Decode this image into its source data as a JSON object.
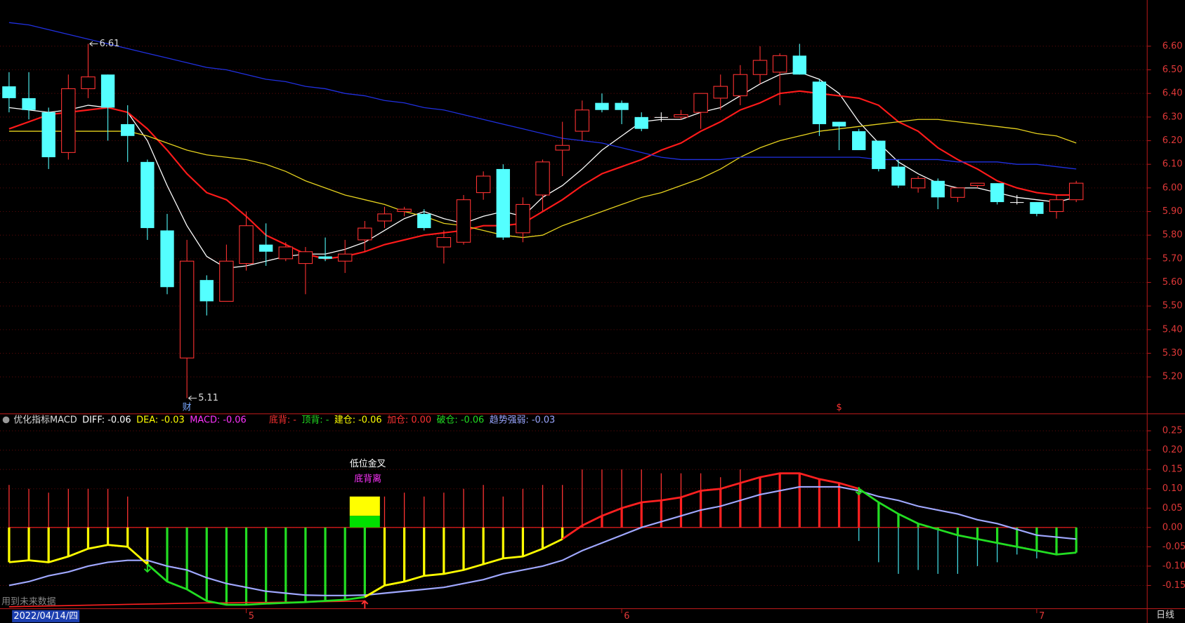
{
  "chart_data": [
    {
      "type": "candlestick",
      "open": [
        6.43,
        6.38,
        6.32,
        6.15,
        6.42,
        6.48,
        6.27,
        6.11,
        5.82,
        5.28,
        5.61,
        5.52,
        5.68,
        5.76,
        5.7,
        5.68,
        5.71,
        5.69,
        5.78,
        5.86,
        5.9,
        5.89,
        5.75,
        5.77,
        5.98,
        6.08,
        5.81,
        5.97,
        6.16,
        6.24,
        6.36,
        6.36,
        6.3,
        6.3,
        6.3,
        6.32,
        6.38,
        6.39,
        6.48,
        6.49,
        6.56,
        6.45,
        6.28,
        6.24,
        6.2,
        6.09,
        6.0,
        6.03,
        5.96,
        6.01,
        6.02,
        5.94,
        5.94,
        5.9,
        5.95
      ],
      "high": [
        6.49,
        6.49,
        6.34,
        6.48,
        6.61,
        6.48,
        6.35,
        6.12,
        5.89,
        5.78,
        5.63,
        5.76,
        5.9,
        5.85,
        5.77,
        5.75,
        5.79,
        5.78,
        5.86,
        5.92,
        5.92,
        5.91,
        5.82,
        5.97,
        6.07,
        6.1,
        5.96,
        6.12,
        6.28,
        6.37,
        6.4,
        6.37,
        6.32,
        6.32,
        6.33,
        6.4,
        6.48,
        6.52,
        6.6,
        6.57,
        6.61,
        6.46,
        6.28,
        6.25,
        6.2,
        6.12,
        6.05,
        6.04,
        6.0,
        6.02,
        6.02,
        5.97,
        5.94,
        5.97,
        6.03
      ],
      "low": [
        6.32,
        6.29,
        6.08,
        6.12,
        6.38,
        6.2,
        6.11,
        5.78,
        5.55,
        5.11,
        5.46,
        5.52,
        5.65,
        5.67,
        5.69,
        5.55,
        5.69,
        5.64,
        5.73,
        5.83,
        5.88,
        5.82,
        5.68,
        5.76,
        5.95,
        5.78,
        5.77,
        5.9,
        6.05,
        6.2,
        6.32,
        6.27,
        6.24,
        6.28,
        6.29,
        6.25,
        6.33,
        6.35,
        6.44,
        6.35,
        6.48,
        6.22,
        6.16,
        6.16,
        6.07,
        6.0,
        5.98,
        5.91,
        5.94,
        6.0,
        5.93,
        5.93,
        5.88,
        5.87,
        5.94
      ],
      "close": [
        6.38,
        6.33,
        6.13,
        6.42,
        6.47,
        6.34,
        6.22,
        5.83,
        5.58,
        5.69,
        5.52,
        5.69,
        5.84,
        5.73,
        5.75,
        5.73,
        5.7,
        5.72,
        5.83,
        5.89,
        5.91,
        5.83,
        5.79,
        5.95,
        6.05,
        5.79,
        5.93,
        6.11,
        6.18,
        6.33,
        6.33,
        6.33,
        6.25,
        6.3,
        6.31,
        6.4,
        6.43,
        6.48,
        6.54,
        6.56,
        6.48,
        6.27,
        6.26,
        6.16,
        6.08,
        6.01,
        6.04,
        5.96,
        6.0,
        6.02,
        5.94,
        5.94,
        5.89,
        5.95,
        6.02
      ],
      "up_color": "#ff3232",
      "down_color": "#54ffff",
      "flat_color": "#ffffff",
      "series": [
        {
          "color": "#ffffff",
          "values": [
            6.34,
            6.33,
            6.32,
            6.33,
            6.35,
            6.34,
            6.32,
            6.2,
            6.01,
            5.84,
            5.71,
            5.66,
            5.67,
            5.69,
            5.71,
            5.72,
            5.72,
            5.74,
            5.77,
            5.82,
            5.87,
            5.9,
            5.87,
            5.85,
            5.88,
            5.9,
            5.88,
            5.96,
            6.01,
            6.08,
            6.16,
            6.22,
            6.28,
            6.29,
            6.29,
            6.32,
            6.34,
            6.39,
            6.44,
            6.48,
            6.49,
            6.46,
            6.4,
            6.28,
            6.19,
            6.11,
            6.06,
            6.02,
            6.0,
            6.0,
            5.98,
            5.96,
            5.95,
            5.94,
            5.96
          ]
        },
        {
          "color": "#ff1a1a",
          "values": [
            6.25,
            6.28,
            6.31,
            6.32,
            6.33,
            6.34,
            6.32,
            6.25,
            6.16,
            6.06,
            5.98,
            5.95,
            5.88,
            5.8,
            5.76,
            5.72,
            5.7,
            5.71,
            5.73,
            5.76,
            5.78,
            5.8,
            5.81,
            5.82,
            5.84,
            5.84,
            5.85,
            5.9,
            5.95,
            6.01,
            6.06,
            6.09,
            6.12,
            6.16,
            6.19,
            6.24,
            6.28,
            6.33,
            6.36,
            6.4,
            6.41,
            6.4,
            6.39,
            6.38,
            6.35,
            6.28,
            6.24,
            6.17,
            6.12,
            6.08,
            6.03,
            6.0,
            5.98,
            5.97,
            5.97
          ]
        },
        {
          "color": "#e6d21e",
          "values": [
            6.24,
            6.24,
            6.24,
            6.24,
            6.24,
            6.24,
            6.24,
            6.22,
            6.19,
            6.16,
            6.14,
            6.13,
            6.12,
            6.1,
            6.07,
            6.03,
            6.0,
            5.97,
            5.95,
            5.93,
            5.9,
            5.88,
            5.85,
            5.84,
            5.82,
            5.8,
            5.79,
            5.8,
            5.84,
            5.87,
            5.9,
            5.93,
            5.96,
            5.98,
            6.01,
            6.04,
            6.08,
            6.13,
            6.17,
            6.2,
            6.22,
            6.24,
            6.25,
            6.26,
            6.27,
            6.28,
            6.29,
            6.29,
            6.28,
            6.27,
            6.26,
            6.25,
            6.23,
            6.22,
            6.19
          ]
        },
        {
          "color": "#2030e0",
          "values": [
            6.7,
            6.69,
            6.67,
            6.65,
            6.63,
            6.61,
            6.59,
            6.57,
            6.55,
            6.53,
            6.51,
            6.5,
            6.48,
            6.46,
            6.45,
            6.43,
            6.42,
            6.4,
            6.39,
            6.37,
            6.36,
            6.34,
            6.33,
            6.31,
            6.29,
            6.27,
            6.25,
            6.23,
            6.21,
            6.2,
            6.19,
            6.17,
            6.15,
            6.13,
            6.12,
            6.12,
            6.12,
            6.13,
            6.13,
            6.13,
            6.13,
            6.13,
            6.13,
            6.13,
            6.12,
            6.12,
            6.12,
            6.12,
            6.11,
            6.11,
            6.11,
            6.1,
            6.1,
            6.09,
            6.08
          ]
        }
      ],
      "ylim": [
        5.05,
        6.77
      ],
      "yticks": [
        {
          "value": 6.6,
          "label": "6.60"
        },
        {
          "value": 6.5,
          "label": "6.50"
        },
        {
          "value": 6.4,
          "label": "6.40"
        },
        {
          "value": 6.3,
          "label": "6.30"
        },
        {
          "value": 6.2,
          "label": "6.20"
        },
        {
          "value": 6.1,
          "label": "6.10"
        },
        {
          "value": 6,
          "label": "6.00"
        },
        {
          "value": 5.9,
          "label": "5.90"
        },
        {
          "value": 5.8,
          "label": "5.80"
        },
        {
          "value": 5.7,
          "label": "5.70"
        },
        {
          "value": 5.6,
          "label": "5.60"
        },
        {
          "value": 5.5,
          "label": "5.50"
        },
        {
          "value": 5.4,
          "label": "5.40"
        },
        {
          "value": 5.3,
          "label": "5.30"
        },
        {
          "value": 5.2,
          "label": "5.20"
        }
      ],
      "grid": true,
      "markers": [
        {
          "text": "财",
          "index": 9,
          "color": "#7aa8ff"
        },
        {
          "text": "$",
          "index": 42,
          "color": "#ff3232"
        }
      ],
      "x_labels": [
        {
          "index": 0,
          "label": "2022/04/14/四"
        },
        {
          "index": 12,
          "label": "5"
        },
        {
          "index": 31,
          "label": "6"
        },
        {
          "index": 52,
          "label": "7"
        }
      ],
      "footer_note": "用到未来数据",
      "period": "日线"
    },
    {
      "type": "macd",
      "title": "优化指标MACD",
      "legend": [
        {
          "text": "DIFF: -0.06",
          "color": "#ffffff"
        },
        {
          "text": "DEA: -0.03",
          "color": "#ffff00"
        },
        {
          "text": "MACD: -0.06",
          "color": "#ff33ff"
        },
        {
          "text": "底背: -",
          "color": "#ff3232"
        },
        {
          "text": "顶背: -",
          "color": "#22dd22"
        },
        {
          "text": "建仓: -0.06",
          "color": "#ffff00"
        },
        {
          "text": "加仓: 0.00",
          "color": "#ff3232"
        },
        {
          "text": "破仓: -0.06",
          "color": "#22dd22"
        },
        {
          "text": "趋势强弱: -0.03",
          "color": "#9aa6ff"
        }
      ],
      "series": [
        {
          "values": [
            -0.09,
            -0.085,
            -0.09,
            -0.075,
            -0.055,
            -0.045,
            -0.05,
            -0.095,
            -0.14,
            -0.16,
            -0.19,
            -0.2,
            -0.2,
            -0.197,
            -0.195,
            -0.193,
            -0.19,
            -0.187,
            -0.18,
            -0.15,
            -0.14,
            -0.125,
            -0.12,
            -0.11,
            -0.095,
            -0.08,
            -0.075,
            -0.055,
            -0.03,
            0.005,
            0.03,
            0.05,
            0.065,
            0.07,
            0.078,
            0.095,
            0.1,
            0.115,
            0.13,
            0.14,
            0.14,
            0.125,
            0.115,
            0.1,
            0.065,
            0.035,
            0.01,
            -0.005,
            -0.02,
            -0.03,
            -0.04,
            -0.05,
            -0.06,
            -0.07,
            -0.065
          ],
          "point_colors": [
            "#ffff00",
            "#ffff00",
            "#ffff00",
            "#ffff00",
            "#ffff00",
            "#ffff00",
            "#ffff00",
            "#ffff00",
            "#22dd22",
            "#22dd22",
            "#22dd22",
            "#22dd22",
            "#22dd22",
            "#22dd22",
            "#22dd22",
            "#22dd22",
            "#22dd22",
            "#22dd22",
            "#22dd22",
            "#ffff00",
            "#ffff00",
            "#ffff00",
            "#ffff00",
            "#ffff00",
            "#ffff00",
            "#ffff00",
            "#ffff00",
            "#ffff00",
            "#ffff00",
            "#ff2020",
            "#ff2020",
            "#ff2020",
            "#ff2020",
            "#ff2020",
            "#ff2020",
            "#ff2020",
            "#ff2020",
            "#ff2020",
            "#ff2020",
            "#ff2020",
            "#ff2020",
            "#ff2020",
            "#ff2020",
            "#ff2020",
            "#22dd22",
            "#22dd22",
            "#22dd22",
            "#22dd22",
            "#22dd22",
            "#22dd22",
            "#22dd22",
            "#22dd22",
            "#22dd22",
            "#22dd22",
            "#22dd22"
          ]
        },
        {
          "color": "#a0a8ff",
          "values": [
            -0.15,
            -0.14,
            -0.125,
            -0.115,
            -0.1,
            -0.09,
            -0.085,
            -0.085,
            -0.1,
            -0.11,
            -0.13,
            -0.145,
            -0.155,
            -0.165,
            -0.17,
            -0.175,
            -0.176,
            -0.176,
            -0.175,
            -0.17,
            -0.165,
            -0.16,
            -0.155,
            -0.145,
            -0.135,
            -0.12,
            -0.11,
            -0.1,
            -0.085,
            -0.06,
            -0.04,
            -0.02,
            0,
            0.015,
            0.03,
            0.045,
            0.055,
            0.07,
            0.085,
            0.095,
            0.105,
            0.105,
            0.105,
            0.095,
            0.08,
            0.07,
            0.055,
            0.045,
            0.035,
            0.02,
            0.01,
            -0.005,
            -0.02,
            -0.025,
            -0.03
          ]
        },
        {
          "color": "#ff2020",
          "values": [
            -0.205,
            -0.204,
            -0.203,
            -0.202,
            -0.201,
            -0.2,
            -0.199,
            -0.198,
            -0.197,
            -0.196,
            -0.195,
            -0.195,
            -0.194,
            -0.194,
            -0.193,
            -0.193,
            -0.192,
            -0.191,
            -0.19,
            null,
            null,
            null,
            null,
            null,
            null,
            null,
            null,
            null,
            null,
            null,
            null,
            null,
            null,
            null,
            null,
            null,
            null,
            null,
            null,
            null,
            null,
            null,
            null,
            null,
            null,
            null,
            null,
            null,
            null,
            null,
            null,
            null,
            null,
            null,
            null
          ]
        }
      ],
      "sticks": {
        "up_color": "#ff3232",
        "down_color": "#40d8e0",
        "values": [
          0.11,
          0.1,
          0.09,
          0.1,
          0.1,
          0.1,
          0.08,
          null,
          null,
          null,
          null,
          null,
          null,
          null,
          null,
          null,
          null,
          null,
          null,
          0.08,
          0.09,
          0.08,
          0.09,
          0.1,
          0.11,
          0.08,
          0.1,
          0.11,
          0.11,
          0.15,
          0.15,
          0.15,
          0.15,
          0.14,
          0.14,
          0.14,
          0.13,
          0.15,
          0.13,
          0.12,
          null,
          null,
          null,
          -0.035,
          -0.09,
          -0.12,
          -0.11,
          -0.12,
          -0.12,
          -0.1,
          -0.09,
          -0.07,
          -0.08,
          -0.06,
          null
        ]
      },
      "signal": {
        "index": 18,
        "values": [
          0.08,
          0.03
        ],
        "colors": [
          "#ffff00",
          "#00e000"
        ],
        "labels": [
          {
            "text": "低位金叉",
            "color": "#ffffff"
          },
          {
            "text": "底背离",
            "color": "#ff33ff"
          }
        ]
      },
      "arrows": [
        {
          "index": 7,
          "value": -0.105,
          "color": "#22dd22",
          "dir": "down"
        },
        {
          "index": 43,
          "value": 0.095,
          "color": "#22dd22",
          "dir": "down"
        },
        {
          "index": 18,
          "value": -0.2,
          "color": "#ff3232",
          "dir": "up"
        }
      ],
      "ylim": [
        -0.21,
        0.29
      ],
      "yticks": [
        0.25,
        {
          "value": 0.2,
          "label": "0.20"
        },
        0.15,
        {
          "value": 0.1,
          "label": "0.10"
        },
        0.05,
        {
          "value": 0,
          "label": "0.00"
        },
        -0.05,
        {
          "value": -0.1,
          "label": "-0.10"
        },
        -0.15
      ],
      "grid": true
    }
  ]
}
